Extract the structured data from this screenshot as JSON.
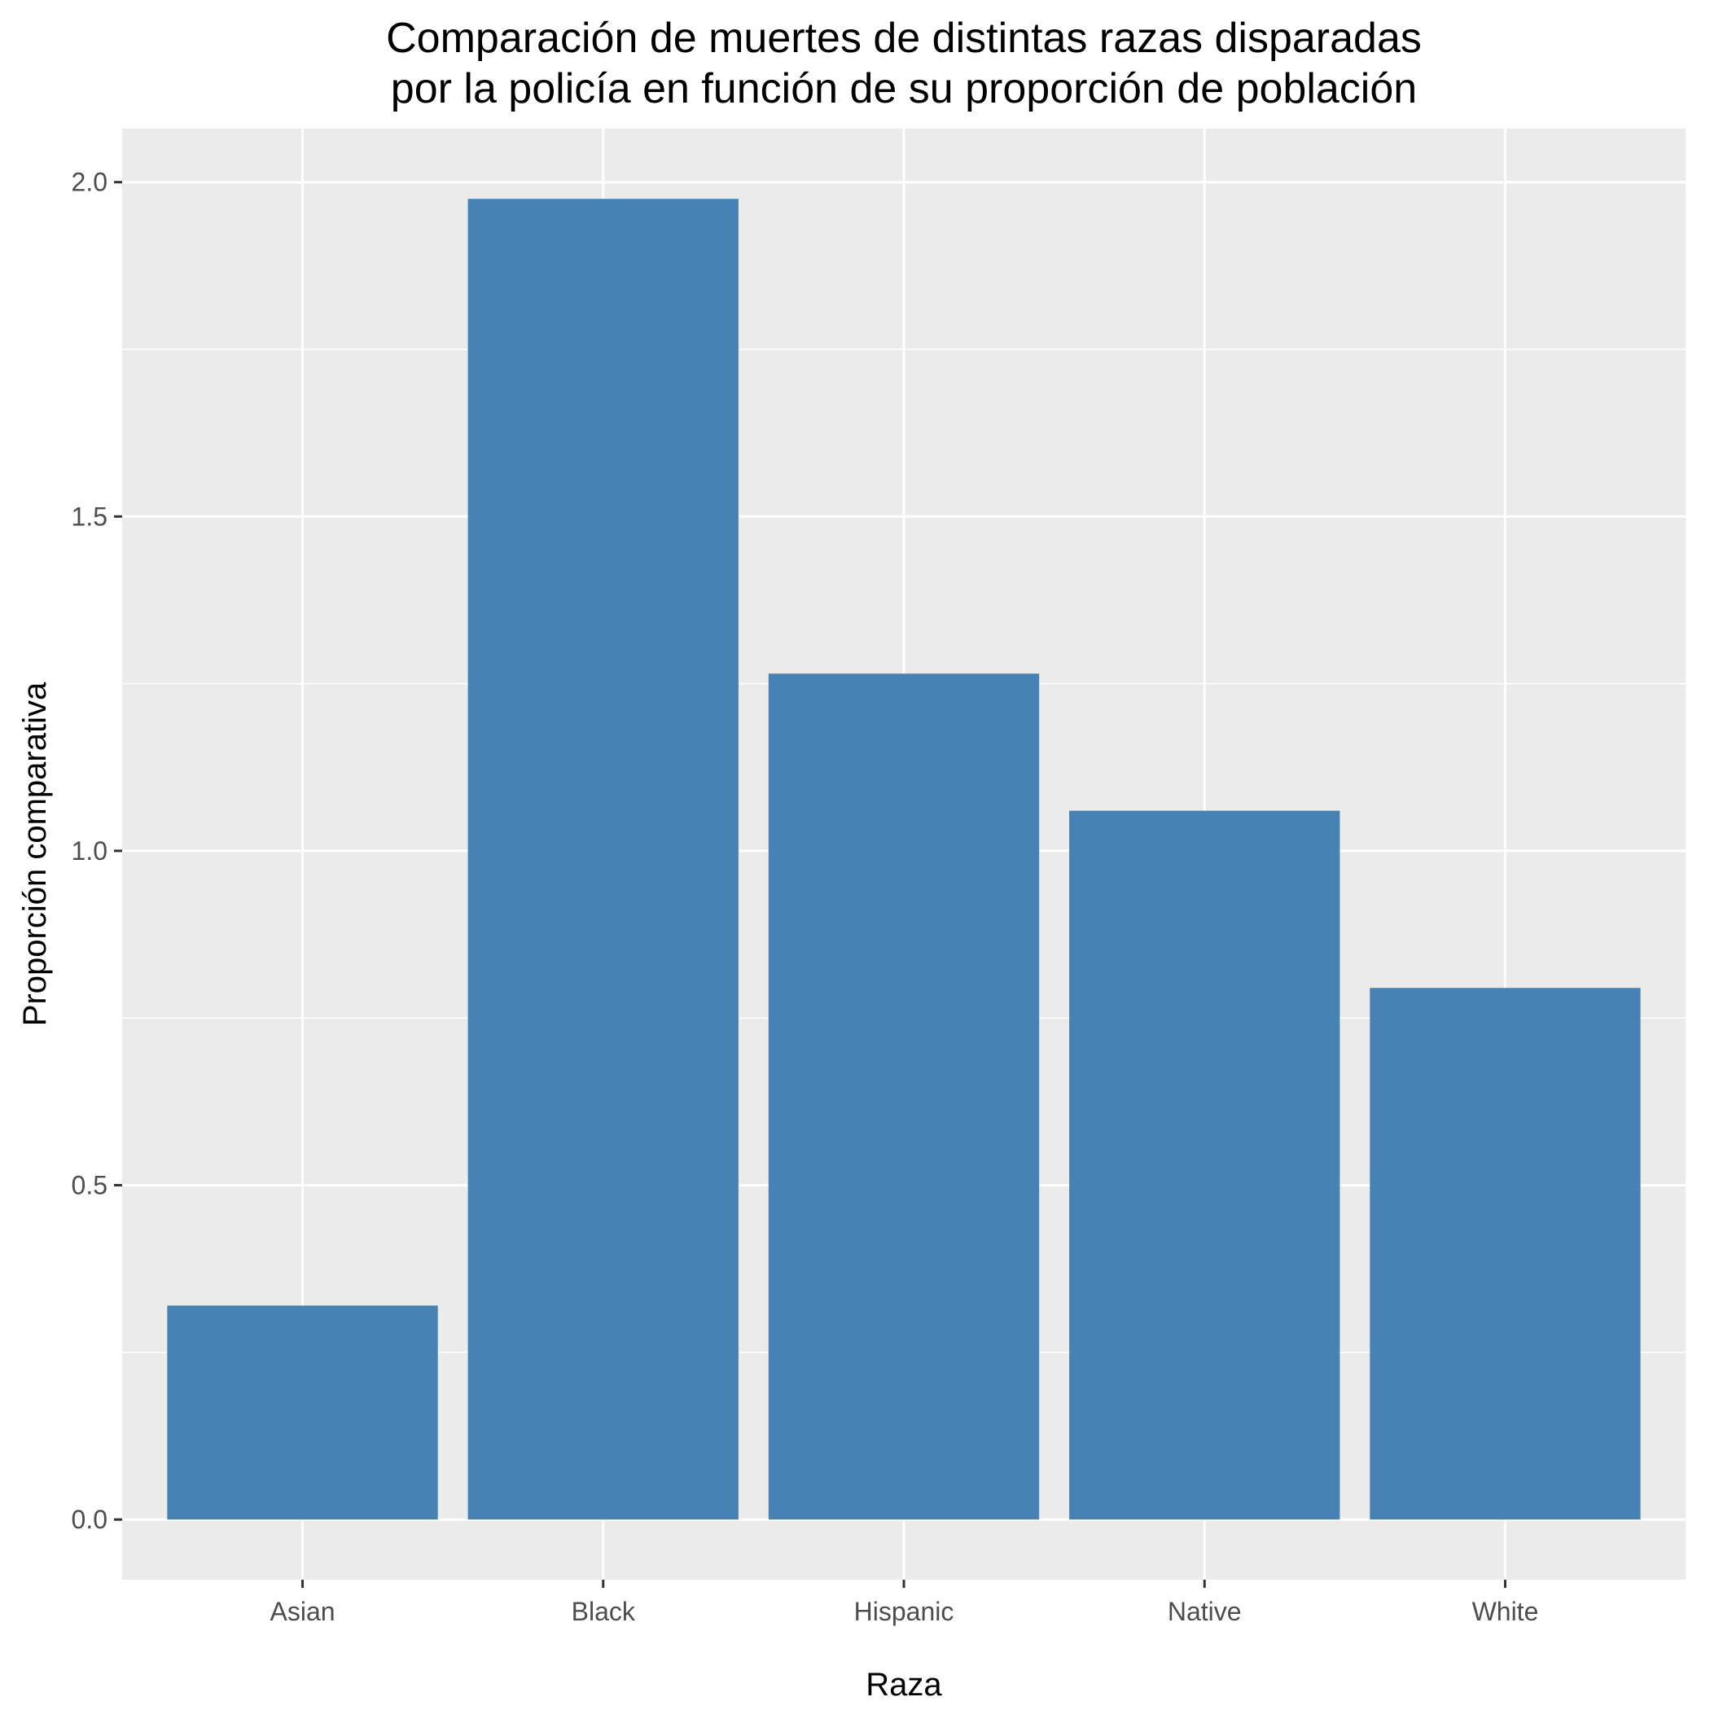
{
  "chart_data": {
    "type": "bar",
    "title": "Comparación de muertes de distintas razas disparadas\npor la policía en función de su proporción de población",
    "xlabel": "Raza",
    "ylabel": "Proporción comparativa",
    "categories": [
      "Asian",
      "Black",
      "Hispanic",
      "Native",
      "White"
    ],
    "values": [
      0.32,
      1.975,
      1.265,
      1.06,
      0.795
    ],
    "ylim": [
      -0.09,
      2.08
    ],
    "yticks": [
      0.0,
      0.5,
      1.0,
      1.5,
      2.0
    ],
    "ytick_labels": [
      "0.0",
      "0.5",
      "1.0",
      "1.5",
      "2.0"
    ],
    "grid": true,
    "legend": "none",
    "colors": {
      "bar": "#4682b4",
      "panel_background": "#ebebeb",
      "grid_major": "#ffffff",
      "grid_minor": "#ffffff",
      "tick": "#333333",
      "tick_label": "#4d4d4d",
      "title": "#000000"
    }
  }
}
